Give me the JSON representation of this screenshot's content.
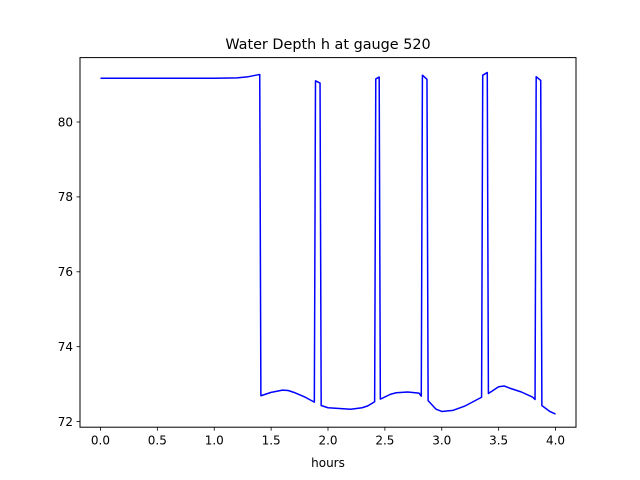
{
  "chart_data": {
    "type": "line",
    "title": "Water Depth h at gauge 520",
    "xlabel": "hours",
    "ylabel": "",
    "xlim": [
      -0.18,
      4.18
    ],
    "ylim": [
      71.85,
      81.72
    ],
    "xticks": [
      0.0,
      0.5,
      1.0,
      1.5,
      2.0,
      2.5,
      3.0,
      3.5,
      4.0
    ],
    "xtick_labels": [
      "0.0",
      "0.5",
      "1.0",
      "1.5",
      "2.0",
      "2.5",
      "3.0",
      "3.5",
      "4.0"
    ],
    "yticks": [
      72,
      74,
      76,
      78,
      80
    ],
    "ytick_labels": [
      "72",
      "74",
      "76",
      "78",
      "80"
    ],
    "grid": false,
    "series": [
      {
        "color": "#0000ff",
        "x": [
          0.0,
          0.2,
          0.4,
          0.6,
          0.8,
          1.0,
          1.2,
          1.3,
          1.35,
          1.4,
          1.41,
          1.5,
          1.6,
          1.65,
          1.7,
          1.8,
          1.88,
          1.89,
          1.93,
          1.94,
          2.0,
          2.1,
          2.2,
          2.3,
          2.35,
          2.41,
          2.42,
          2.45,
          2.46,
          2.55,
          2.6,
          2.7,
          2.8,
          2.82,
          2.83,
          2.87,
          2.88,
          2.95,
          3.0,
          3.1,
          3.2,
          3.3,
          3.35,
          3.36,
          3.4,
          3.41,
          3.5,
          3.55,
          3.6,
          3.7,
          3.8,
          3.82,
          3.83,
          3.87,
          3.88,
          3.95,
          4.0
        ],
        "y": [
          81.17,
          81.17,
          81.17,
          81.17,
          81.17,
          81.17,
          81.18,
          81.21,
          81.24,
          81.27,
          72.69,
          72.78,
          72.84,
          72.83,
          72.78,
          72.65,
          72.52,
          81.1,
          81.04,
          72.43,
          72.37,
          72.35,
          72.33,
          72.37,
          72.42,
          72.53,
          81.15,
          81.2,
          72.6,
          72.73,
          72.77,
          72.79,
          72.76,
          72.68,
          81.25,
          81.14,
          72.56,
          72.33,
          72.27,
          72.3,
          72.41,
          72.57,
          72.65,
          81.25,
          81.32,
          72.75,
          72.93,
          72.95,
          72.89,
          72.79,
          72.65,
          72.59,
          81.21,
          81.11,
          72.43,
          72.27,
          72.2
        ]
      }
    ]
  }
}
